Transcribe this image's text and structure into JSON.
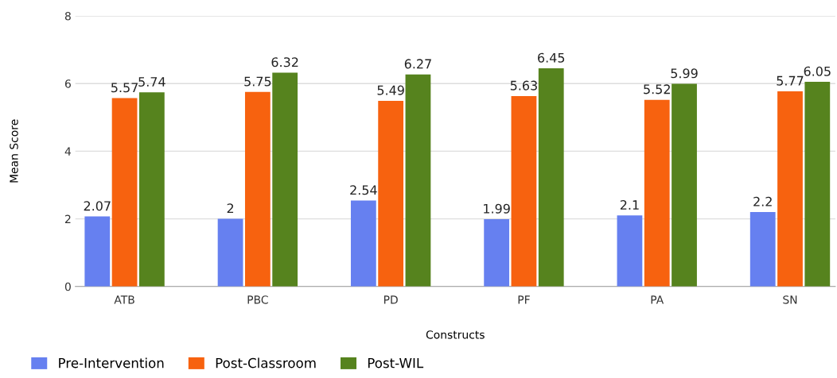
{
  "chart_data": {
    "type": "bar",
    "xlabel": "Constructs",
    "ylabel": "Mean Score",
    "categories": [
      "ATB",
      "PBC",
      "PD",
      "PF",
      "PA",
      "SN"
    ],
    "series": [
      {
        "name": "Pre-Intervention",
        "color": "#6680f0",
        "values": [
          2.07,
          2,
          2.54,
          1.99,
          2.1,
          2.2
        ]
      },
      {
        "name": "Post-Classroom",
        "color": "#f7620f",
        "values": [
          5.57,
          5.75,
          5.49,
          5.63,
          5.52,
          5.77
        ]
      },
      {
        "name": "Post-WIL",
        "color": "#56831e",
        "values": [
          5.74,
          6.32,
          6.27,
          6.45,
          5.99,
          6.05
        ]
      }
    ],
    "ylim": [
      0,
      8
    ],
    "yticks": [
      0,
      2,
      4,
      6,
      8
    ],
    "grid": "y",
    "legend": "bottom left",
    "data_labels": true
  }
}
